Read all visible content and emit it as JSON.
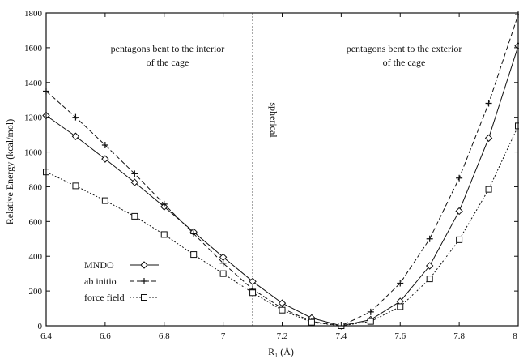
{
  "chart_data": {
    "type": "line",
    "xlabel": "R₁ (Å)",
    "ylabel": "Relative Energy  (kcal/mol)",
    "xlim": [
      6.4,
      8.0
    ],
    "ylim": [
      0,
      1800
    ],
    "x_ticks": [
      "6.4",
      "6.6",
      "6.8",
      "7",
      "7.2",
      "7.4",
      "7.6",
      "7.8",
      "8"
    ],
    "y_ticks": [
      "0",
      "200",
      "400",
      "600",
      "800",
      "1000",
      "1200",
      "1400",
      "1600",
      "1800"
    ],
    "annotations": {
      "left": [
        "pentagons bent to the interior",
        "of the cage"
      ],
      "right": [
        "pentagons bent to the exterior",
        "of the cage"
      ],
      "vline_label": "spherical",
      "vline_x": 7.1
    },
    "legend_position": "bottom-left",
    "series": [
      {
        "name": "MNDO",
        "style": "solid",
        "marker": "diamond",
        "color": "#111111",
        "x": [
          6.4,
          6.5,
          6.6,
          6.7,
          6.8,
          6.9,
          7.0,
          7.1,
          7.2,
          7.3,
          7.4,
          7.5,
          7.6,
          7.7,
          7.8,
          7.9,
          8.0
        ],
        "y": [
          1210,
          1090,
          960,
          825,
          685,
          540,
          395,
          255,
          130,
          45,
          0,
          35,
          140,
          345,
          660,
          1080,
          1610
        ]
      },
      {
        "name": "ab initio",
        "style": "dashed",
        "marker": "plus",
        "color": "#111111",
        "x": [
          6.4,
          6.5,
          6.6,
          6.7,
          6.8,
          6.9,
          7.0,
          7.1,
          7.2,
          7.3,
          7.4,
          7.5,
          7.6,
          7.7,
          7.8,
          7.9,
          8.0
        ],
        "y": [
          1350,
          1200,
          1040,
          875,
          700,
          530,
          360,
          210,
          100,
          25,
          0,
          80,
          245,
          500,
          850,
          1280,
          1790
        ]
      },
      {
        "name": "force field",
        "style": "dotted",
        "marker": "square",
        "color": "#111111",
        "x": [
          6.4,
          6.5,
          6.6,
          6.7,
          6.8,
          6.9,
          7.0,
          7.1,
          7.2,
          7.3,
          7.4,
          7.5,
          7.6,
          7.7,
          7.8,
          7.9,
          8.0
        ],
        "y": [
          885,
          805,
          720,
          630,
          525,
          410,
          300,
          190,
          90,
          20,
          0,
          25,
          110,
          270,
          495,
          785,
          1150
        ]
      }
    ]
  }
}
